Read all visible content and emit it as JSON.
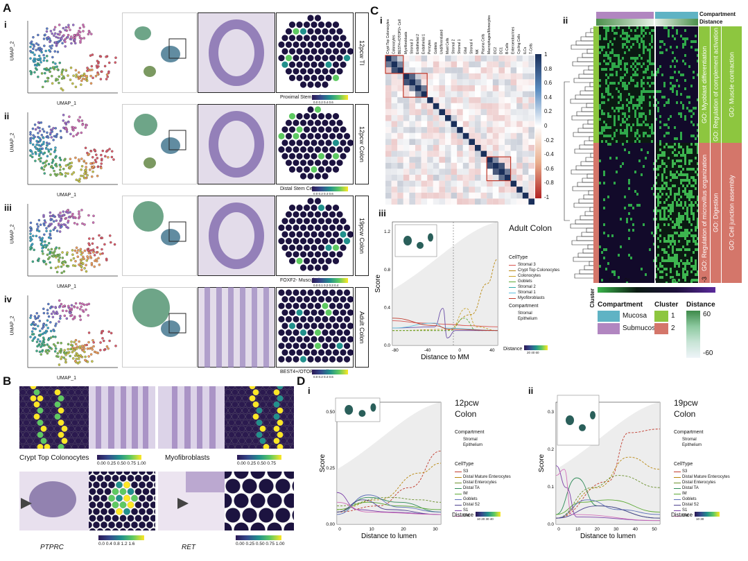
{
  "panels": {
    "A": {
      "label": "A",
      "rows": [
        {
          "roman": "i",
          "stage": "12pcw TI",
          "cell": "Proximal Stem Cells",
          "ticks": "0.0 0.2 0.4 0.6",
          "x": "UMAP_1",
          "y": "UMAP_2"
        },
        {
          "roman": "ii",
          "stage": "12pcw Colon",
          "cell": "Distal Stem Cells",
          "ticks": "0.0 0.2 0.4 0.6",
          "x": "UMAP_1",
          "y": "UMAP_2"
        },
        {
          "roman": "iii",
          "stage": "19pcw Colon",
          "cell": "FOXF2- Muscularis",
          "ticks": "0.0 0.1 0.2 0.3 0.4",
          "x": "UMAP_1",
          "y": "UMAP_2"
        },
        {
          "roman": "iv",
          "stage": "Adult Colon",
          "cell": "BEST4+/OTOP2+ Cell",
          "ticks": "0.0 0.2 0.4 0.6",
          "x": "UMAP_1",
          "y": "UMAP_2"
        }
      ]
    },
    "B": {
      "label": "B",
      "top_left": "Crypt Top Colonocytes",
      "top_left_ticks": "0.00 0.25 0.50 0.75 1.00",
      "top_right": "Myofibroblasts",
      "top_right_ticks": "0.00 0.25 0.50 0.75",
      "bottom_left": "PTPRC",
      "bottom_left_ticks": "0.0 0.4 0.8 1.2 1.6",
      "bottom_right": "RET",
      "bottom_right_ticks": "0.00 0.25 0.50 0.75 1.00"
    },
    "C": {
      "label": "C",
      "i": {
        "roman": "i",
        "celltypes": [
          "Crypt Top Colonocytes",
          "Colonocytes",
          "BEST4+/OTOP2+ Cell",
          "Myofibroblasts",
          "Stromal 3",
          "Endothelial 2",
          "Endothelial 1",
          "Pericytes",
          "Goblets",
          "Undifferentiated",
          "Mast Cells",
          "Stromal 2",
          "Stromal 1",
          "Glial",
          "Stromal 4",
          "NK",
          "Plasma Cells",
          "Macrophages/Monocytes",
          "DC2",
          "DC1",
          "B-Cells",
          "Enteroendocrines",
          "Cycling Cells",
          "ILCs",
          "T-Cells"
        ],
        "scale": [
          "1",
          "0.8",
          "0.6",
          "0.4",
          "0.2",
          "0",
          "-0.2",
          "-0.4",
          "-0.6",
          "-0.8",
          "-1"
        ]
      },
      "ii": {
        "roman": "ii",
        "header1": "Compartment",
        "header2": "Distance",
        "go": [
          "GO: Myoblast differentiation",
          "GO: Regulation of complement activation",
          "GO: Muscle contraction",
          "GO: Regulation of microvillus organization",
          "GO: Digestion",
          "GO: Cell junction assembly"
        ],
        "cluster_axis": "Cluster",
        "ticks": [
          "3",
          "2",
          "1",
          "0",
          "-1",
          "-2",
          "-3"
        ],
        "legend": {
          "compartment": "Compartment",
          "mucosa": "Mucosa",
          "submucosa": "Submucosa",
          "cluster": "Cluster",
          "c1": "1",
          "c2": "2",
          "distance": "Distance",
          "d_hi": "60",
          "d_lo": "-60"
        },
        "colors": {
          "mucosa": "#5fb3c4",
          "submucosa": "#b186c0",
          "cluster1": "#8dc63f",
          "cluster2": "#d4766a"
        }
      },
      "iii": {
        "roman": "iii",
        "title": "Adult Colon",
        "xlabel": "Distance to MM",
        "ylabel": "Score",
        "celltype_title": "CellType",
        "celltypes": [
          "Stromal 3",
          "Crypt Top Colonocytes",
          "Colonocytes",
          "Goblets",
          "Stromal 2",
          "Stromal 1",
          "Myofibroblasts"
        ],
        "compartment_title": "Compartment",
        "compartments": [
          "Stromal",
          "Epithelium"
        ],
        "distance": "Distance",
        "dticks": "20 40 60",
        "yticks": [
          "0.0",
          "0.4",
          "0.8",
          "1.2"
        ],
        "xticks": [
          "-80",
          "-40",
          "0",
          "40"
        ]
      }
    },
    "D": {
      "label": "D",
      "i": {
        "roman": "i",
        "title1": "12pcw",
        "title2": "Colon",
        "xlabel": "Distance to lumen",
        "ylabel": "Score",
        "compartment_title": "Compartment",
        "compartments": [
          "Stromal",
          "Epithelium"
        ],
        "celltype_title": "CellType",
        "celltypes": [
          "S3",
          "Distal Mature Enterocytes",
          "Distal Enterocytes",
          "Distal TA",
          "IM",
          "Goblets",
          "Distal S2",
          "S1",
          "OM"
        ],
        "distance": "Distance",
        "dticks": "10 20 30 40",
        "yticks": [
          "0.00",
          "0.25",
          "0.50"
        ],
        "xticks": [
          "0",
          "10",
          "20",
          "30"
        ]
      },
      "ii": {
        "roman": "ii",
        "title1": "19pcw",
        "title2": "Colon",
        "xlabel": "Distance to lumen",
        "ylabel": "Score",
        "compartment_title": "Compartment",
        "compartments": [
          "Stromal",
          "Epithelium"
        ],
        "celltype_title": "CellType",
        "celltypes": [
          "S3",
          "Distal Mature Enterocytes",
          "Distal Enterocytes",
          "Distal TA",
          "IM",
          "Goblets",
          "Distal S2",
          "S1",
          "OM"
        ],
        "distance": "Distance",
        "dticks": "10 30",
        "yticks": [
          "0.0",
          "0.1",
          "0.2",
          "0.3"
        ],
        "xticks": [
          "0",
          "10",
          "20",
          "30",
          "40",
          "50"
        ]
      }
    }
  }
}
